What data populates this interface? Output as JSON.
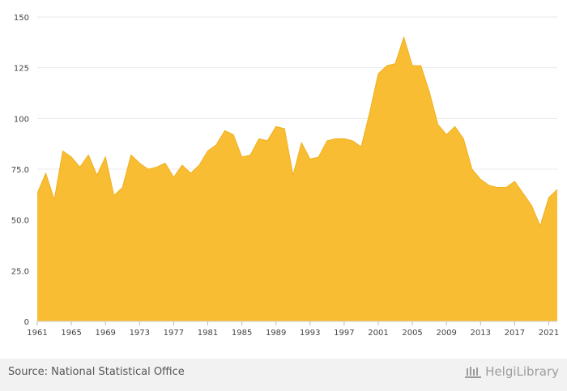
{
  "chart_data": {
    "type": "area",
    "x": [
      1961,
      1962,
      1963,
      1964,
      1965,
      1966,
      1967,
      1968,
      1969,
      1970,
      1971,
      1972,
      1973,
      1974,
      1975,
      1976,
      1977,
      1978,
      1979,
      1980,
      1981,
      1982,
      1983,
      1984,
      1985,
      1986,
      1987,
      1988,
      1989,
      1990,
      1991,
      1992,
      1993,
      1994,
      1995,
      1996,
      1997,
      1998,
      1999,
      2000,
      2001,
      2002,
      2003,
      2004,
      2005,
      2006,
      2007,
      2008,
      2009,
      2010,
      2011,
      2012,
      2013,
      2014,
      2015,
      2016,
      2017,
      2018,
      2019,
      2020,
      2021,
      2022
    ],
    "series": [
      {
        "name": "",
        "values": [
          63,
          73,
          60,
          84,
          81,
          76,
          82,
          72,
          81,
          62,
          66,
          82,
          78,
          75,
          76,
          78,
          71,
          77,
          73,
          77,
          84,
          87,
          94,
          92,
          81,
          82,
          90,
          89,
          96,
          95,
          72,
          88,
          80,
          81,
          89,
          90,
          90,
          89,
          86,
          103,
          122,
          126,
          127,
          140,
          126,
          126,
          113,
          97,
          92,
          96,
          90,
          75,
          70,
          67,
          66,
          66,
          69,
          63,
          57,
          47,
          61,
          65
        ]
      }
    ],
    "title": "",
    "xlabel": "",
    "ylabel": "",
    "ylim": [
      0,
      150
    ],
    "xlim": [
      1961,
      2022
    ],
    "y_ticks": [
      "0",
      "25.0",
      "50.0",
      "75.0",
      "100",
      "125",
      "150"
    ],
    "x_ticks": [
      "1961",
      "1965",
      "1969",
      "1973",
      "1977",
      "1981",
      "1985",
      "1989",
      "1993",
      "1997",
      "2001",
      "2005",
      "2009",
      "2013",
      "2017",
      "2021"
    ],
    "grid": true,
    "legend": "none",
    "colors": {
      "fill": "#f9bd33",
      "stroke": "#efb01f",
      "grid": "#e9e9e9"
    }
  },
  "footer": {
    "source": "Source: National Statistical Office",
    "brand": "HelgiLibrary",
    "brand_icon": "library-columns-icon"
  }
}
